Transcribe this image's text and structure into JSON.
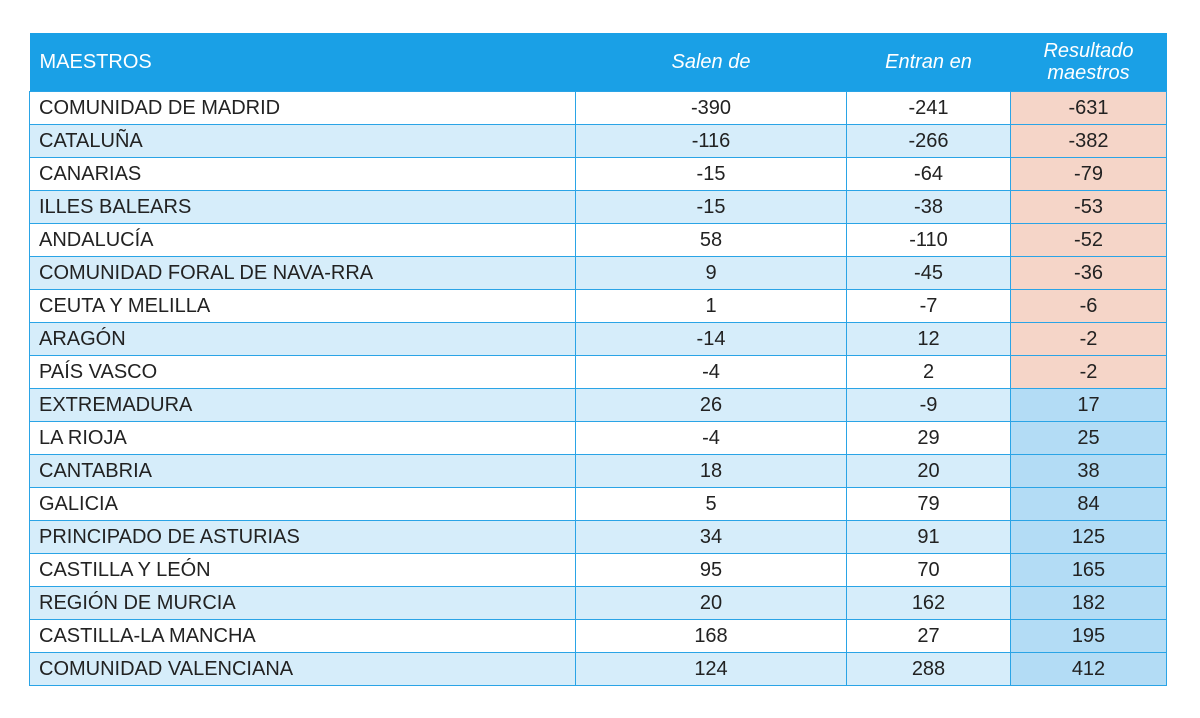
{
  "table": {
    "headers": {
      "name": "MAESTROS",
      "out": "Salen de",
      "in": "Entran en",
      "result_line1": "Resultado",
      "result_line2": "maestros"
    },
    "rows": [
      {
        "region": "COMUNIDAD DE MADRID",
        "out": "-390",
        "in": "-241",
        "result": "-631"
      },
      {
        "region": "CATALUÑA",
        "out": "-116",
        "in": "-266",
        "result": "-382"
      },
      {
        "region": "CANARIAS",
        "out": "-15",
        "in": "-64",
        "result": "-79"
      },
      {
        "region": "ILLES BALEARS",
        "out": "-15",
        "in": "-38",
        "result": "-53"
      },
      {
        "region": "ANDALUCÍA",
        "out": "58",
        "in": "-110",
        "result": "-52"
      },
      {
        "region": "COMUNIDAD FORAL DE NAVA-RRA",
        "out": "9",
        "in": "-45",
        "result": "-36"
      },
      {
        "region": "CEUTA Y MELILLA",
        "out": "1",
        "in": "-7",
        "result": "-6"
      },
      {
        "region": "ARAGÓN",
        "out": "-14",
        "in": "12",
        "result": "-2"
      },
      {
        "region": "PAÍS VASCO",
        "out": "-4",
        "in": "2",
        "result": "-2"
      },
      {
        "region": "EXTREMADURA",
        "out": "26",
        "in": "-9",
        "result": "17"
      },
      {
        "region": "LA RIOJA",
        "out": "-4",
        "in": "29",
        "result": "25"
      },
      {
        "region": "CANTABRIA",
        "out": "18",
        "in": "20",
        "result": "38"
      },
      {
        "region": "GALICIA",
        "out": "5",
        "in": "79",
        "result": "84"
      },
      {
        "region": "PRINCIPADO DE ASTURIAS",
        "out": "34",
        "in": "91",
        "result": "125"
      },
      {
        "region": "CASTILLA Y LEÓN",
        "out": "95",
        "in": "70",
        "result": "165"
      },
      {
        "region": "REGIÓN DE MURCIA",
        "out": "20",
        "in": "162",
        "result": "182"
      },
      {
        "region": "CASTILLA-LA MANCHA",
        "out": "168",
        "in": "27",
        "result": "195"
      },
      {
        "region": "COMUNIDAD VALENCIANA",
        "out": "124",
        "in": "288",
        "result": "412"
      }
    ]
  },
  "colors": {
    "header_bg": "#1aa0e6",
    "negative_result_bg": "#f5d5c8",
    "positive_result_bg": "#b3dcf5",
    "alt_row_bg": "#d6edfa"
  }
}
